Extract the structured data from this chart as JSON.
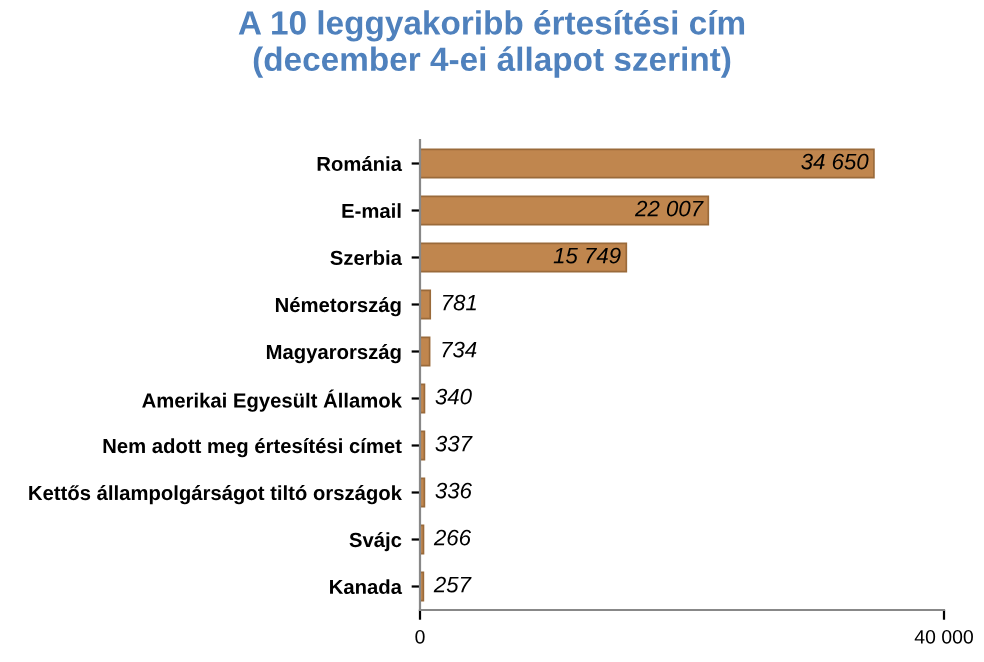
{
  "chart_data": {
    "type": "bar",
    "orientation": "horizontal",
    "title": "A 10 leggyakoribb értesítési cím\n(december 4-ei állapot szerint)",
    "categories": [
      "Románia",
      "E-mail",
      "Szerbia",
      "Németország",
      "Magyarország",
      "Amerikai Egyesült Államok",
      "Nem adott meg értesítési címet",
      "Kettős állampolgárságot tiltó országok",
      "Svájc",
      "Kanada"
    ],
    "values": [
      34650,
      22007,
      15749,
      781,
      734,
      340,
      337,
      336,
      266,
      257
    ],
    "value_labels": [
      "34 650",
      "22 007",
      "15 749",
      "781",
      "734",
      "340",
      "337",
      "336",
      "266",
      "257"
    ],
    "color": "#c0864e",
    "xlim": [
      0,
      40000
    ],
    "xticks": [
      0,
      {
        "value": 40000,
        "label": "40 000"
      }
    ],
    "grid": false
  }
}
